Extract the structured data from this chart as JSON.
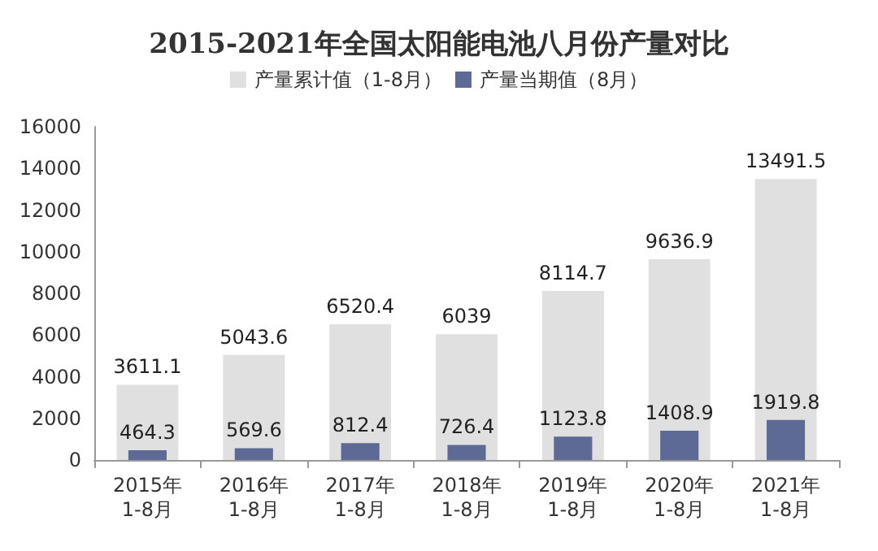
{
  "chart_data": {
    "type": "bar",
    "title": "2015-2021年全国太阳能电池八月份产量对比",
    "categories": [
      "2015年\n1-8月",
      "2016年\n1-8月",
      "2017年\n1-8月",
      "2018年\n1-8月",
      "2019年\n1-8月",
      "2020年\n1-8月",
      "2021年\n1-8月"
    ],
    "series": [
      {
        "name": "产量累计值（1-8月）",
        "color": "#e0e0e0",
        "values": [
          3611.1,
          5043.6,
          6520.4,
          6039,
          8114.7,
          9636.9,
          13491.5
        ]
      },
      {
        "name": "产量当期值（8月）",
        "color": "#5e6a96",
        "values": [
          464.3,
          569.6,
          812.4,
          726.4,
          1123.8,
          1408.9,
          1919.8
        ]
      }
    ],
    "ylim": [
      0,
      16000
    ],
    "yticks": [
      0,
      2000,
      4000,
      6000,
      8000,
      10000,
      12000,
      14000,
      16000
    ],
    "data_labels": true,
    "legend": "top",
    "grid": false
  }
}
